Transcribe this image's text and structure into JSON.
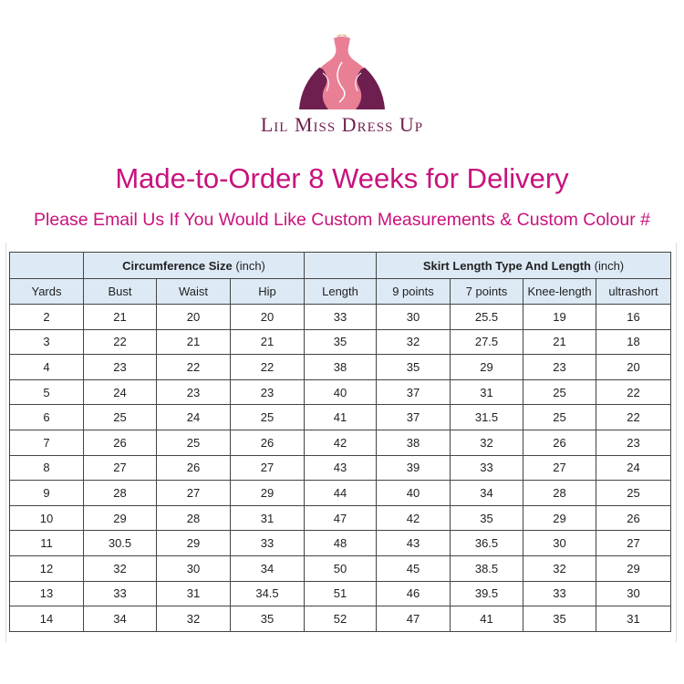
{
  "brand": {
    "name": "Lil Miss Dress Up",
    "primary_color": "#6e1f4f",
    "accent_color": "#e87f95"
  },
  "title": "Made-to-Order 8 Weeks for Delivery",
  "subtitle": "Please Email Us If You Would Like Custom Measurements & Custom Colour #",
  "table": {
    "group_headers": {
      "circumference_bold": "Circumference Size",
      "circumference_unit": " (inch)",
      "skirt_bold": "Skirt Length Type And Length",
      "skirt_unit": " (inch)"
    },
    "columns": [
      "Yards",
      "Bust",
      "Waist",
      "Hip",
      "Length",
      "9 points",
      "7 points",
      "Knee-length",
      "ultrashort"
    ],
    "rows": [
      [
        "2",
        "21",
        "20",
        "20",
        "33",
        "30",
        "25.5",
        "19",
        "16"
      ],
      [
        "3",
        "22",
        "21",
        "21",
        "35",
        "32",
        "27.5",
        "21",
        "18"
      ],
      [
        "4",
        "23",
        "22",
        "22",
        "38",
        "35",
        "29",
        "23",
        "20"
      ],
      [
        "5",
        "24",
        "23",
        "23",
        "40",
        "37",
        "31",
        "25",
        "22"
      ],
      [
        "6",
        "25",
        "24",
        "25",
        "41",
        "37",
        "31.5",
        "25",
        "22"
      ],
      [
        "7",
        "26",
        "25",
        "26",
        "42",
        "38",
        "32",
        "26",
        "23"
      ],
      [
        "8",
        "27",
        "26",
        "27",
        "43",
        "39",
        "33",
        "27",
        "24"
      ],
      [
        "9",
        "28",
        "27",
        "29",
        "44",
        "40",
        "34",
        "28",
        "25"
      ],
      [
        "10",
        "29",
        "28",
        "31",
        "47",
        "42",
        "35",
        "29",
        "26"
      ],
      [
        "11",
        "30.5",
        "29",
        "33",
        "48",
        "43",
        "36.5",
        "30",
        "27"
      ],
      [
        "12",
        "32",
        "30",
        "34",
        "50",
        "45",
        "38.5",
        "32",
        "29"
      ],
      [
        "13",
        "33",
        "31",
        "34.5",
        "51",
        "46",
        "39.5",
        "33",
        "30"
      ],
      [
        "14",
        "34",
        "32",
        "35",
        "52",
        "47",
        "41",
        "35",
        "31"
      ]
    ]
  }
}
